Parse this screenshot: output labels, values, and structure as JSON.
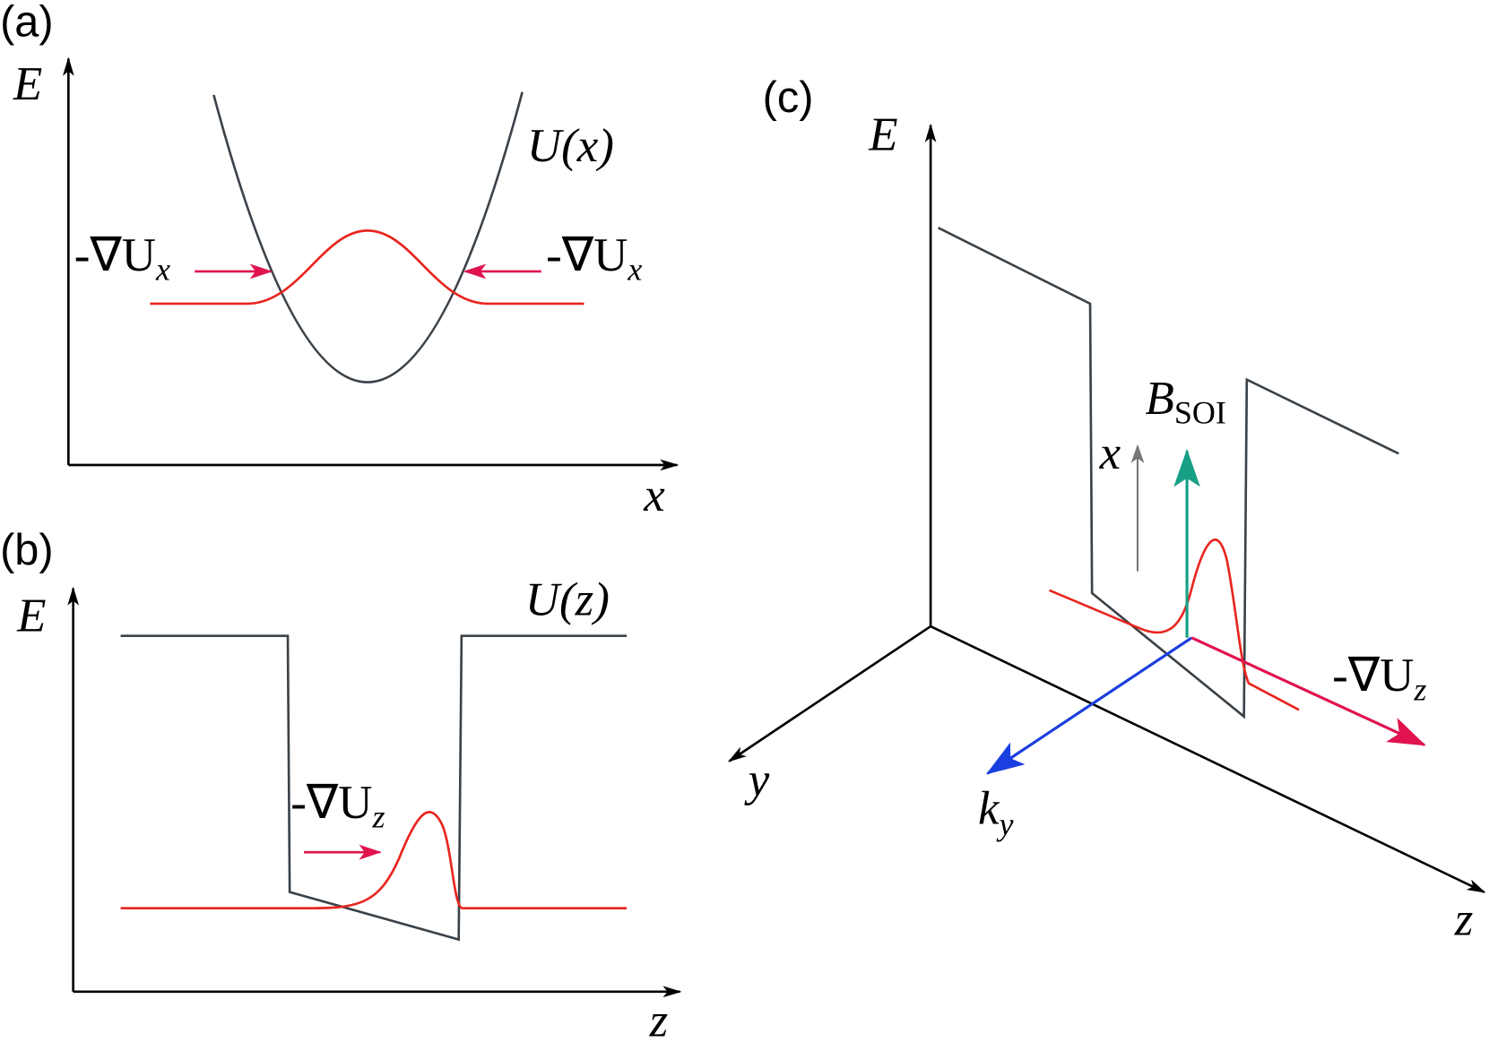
{
  "panels": [
    {
      "label": "(a)",
      "y_axis": "E",
      "x_axis": "x",
      "potential": "U(x)",
      "forces": [
        {
          "main": "-∇U",
          "sub": "x"
        },
        {
          "main": "-∇U",
          "sub": "x"
        }
      ]
    },
    {
      "label": "(b)",
      "y_axis": "E",
      "x_axis": "z",
      "potential": "U(z)",
      "forces": [
        {
          "main": "-∇U",
          "sub": "z"
        }
      ]
    },
    {
      "label": "(c)",
      "e_axis": "E",
      "y_axis": "y",
      "z_axis": "z",
      "x_arrow": "x",
      "field": {
        "main": "B",
        "sub": "SOI"
      },
      "momentum": {
        "main": "k",
        "sub": "y"
      },
      "force": {
        "main": "-∇U",
        "sub": "z"
      }
    }
  ]
}
